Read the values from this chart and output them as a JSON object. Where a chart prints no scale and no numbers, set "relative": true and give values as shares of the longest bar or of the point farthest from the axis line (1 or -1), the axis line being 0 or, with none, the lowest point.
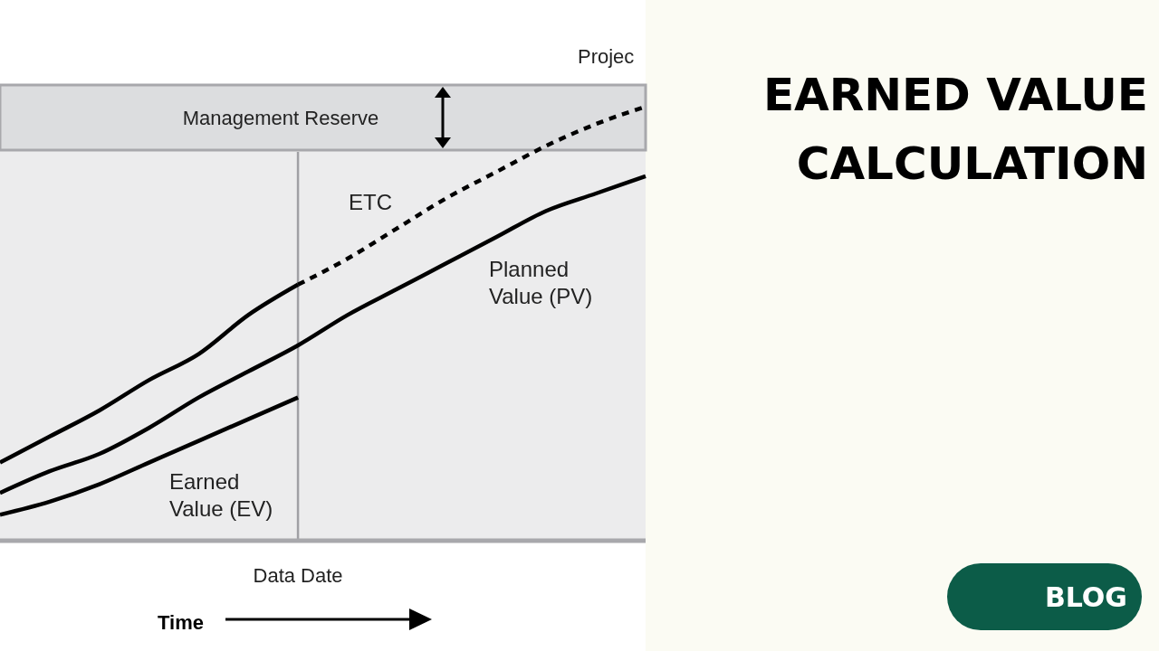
{
  "chart_data": {
    "type": "line",
    "relative": true,
    "title": "EARNED VALUE CALCULATION",
    "xlabel": "Time",
    "categories": [
      null,
      null,
      null,
      null,
      null,
      null,
      null,
      null,
      null,
      null,
      null,
      null,
      null,
      null
    ],
    "series": [
      {
        "color": "#000000",
        "line_style": "solid",
        "values": [
          0.18,
          0.24,
          0.3,
          0.37,
          0.43,
          0.52,
          0.59,
          null,
          null,
          null,
          null,
          null,
          null,
          null
        ]
      },
      {
        "name": "ETC",
        "color": "#000000",
        "line_style": "dashed",
        "values": [
          null,
          null,
          null,
          null,
          null,
          null,
          0.59,
          0.65,
          0.72,
          0.79,
          0.85,
          0.91,
          0.96,
          1
        ]
      },
      {
        "name": "Planned Value (PV)",
        "color": "#000000",
        "line_style": "solid",
        "values": [
          0.11,
          0.16,
          0.2,
          0.26,
          0.33,
          0.39,
          0.45,
          0.52,
          0.58,
          0.64,
          0.7,
          0.76,
          0.8,
          0.84
        ]
      },
      {
        "name": "Earned Value (EV)",
        "color": "#000000",
        "line_style": "solid",
        "values": [
          0.06,
          0.09,
          0.13,
          0.18,
          0.23,
          0.28,
          0.33,
          null,
          null,
          null,
          null,
          null,
          null,
          null
        ]
      }
    ],
    "bands": [
      {
        "axis": "y",
        "from": 0.9,
        "to": 1.05,
        "label": "Management Reserve",
        "color": "#dcdddf"
      }
    ],
    "annotations": [
      "Projec",
      "Data Date",
      "BLOG"
    ]
  }
}
